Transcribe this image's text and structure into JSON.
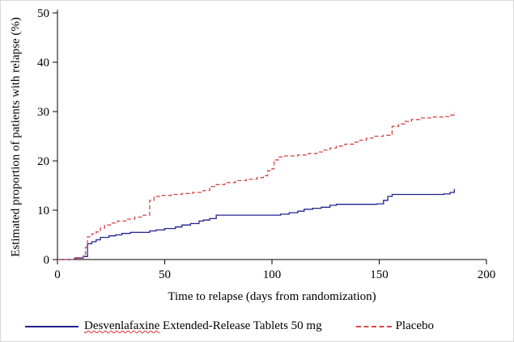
{
  "chart_data": {
    "type": "line",
    "subtype": "step",
    "title": "",
    "xlabel": "Time to relapse (days from randomization)",
    "ylabel": "Estimated proportion of patients with relapse (%)",
    "xlim": [
      0,
      200
    ],
    "ylim": [
      0,
      50
    ],
    "xticks": [
      0,
      50,
      100,
      150,
      200
    ],
    "yticks": [
      0,
      10,
      20,
      30,
      40,
      50
    ],
    "grid": false,
    "legend_position": "bottom",
    "series": [
      {
        "name": "Desvenlafaxine Extended-Release Tablets 50 mg",
        "color": "#22228c",
        "style": "solid",
        "squiggle_first_word": true,
        "points": [
          [
            0,
            0
          ],
          [
            8,
            0.3
          ],
          [
            12,
            0.6
          ],
          [
            14,
            3.2
          ],
          [
            16,
            3.6
          ],
          [
            18,
            4.0
          ],
          [
            20,
            4.5
          ],
          [
            24,
            4.8
          ],
          [
            27,
            5.0
          ],
          [
            30,
            5.3
          ],
          [
            34,
            5.5
          ],
          [
            43,
            5.8
          ],
          [
            46,
            6.0
          ],
          [
            50,
            6.3
          ],
          [
            55,
            6.6
          ],
          [
            58,
            7.0
          ],
          [
            62,
            7.3
          ],
          [
            66,
            7.8
          ],
          [
            68,
            8.0
          ],
          [
            71,
            8.3
          ],
          [
            74,
            9.0
          ],
          [
            100,
            9.0
          ],
          [
            104,
            9.2
          ],
          [
            108,
            9.5
          ],
          [
            112,
            9.8
          ],
          [
            115,
            10.2
          ],
          [
            119,
            10.4
          ],
          [
            123,
            10.6
          ],
          [
            127,
            11.0
          ],
          [
            130,
            11.2
          ],
          [
            149,
            11.3
          ],
          [
            152,
            12.0
          ],
          [
            154,
            12.8
          ],
          [
            156,
            13.2
          ],
          [
            180,
            13.3
          ],
          [
            183,
            13.6
          ],
          [
            185,
            14.3
          ]
        ]
      },
      {
        "name": "Placebo",
        "color": "#d04a4a",
        "style": "dashed",
        "squiggle_first_word": false,
        "points": [
          [
            0,
            0
          ],
          [
            9,
            0.4
          ],
          [
            12,
            1.0
          ],
          [
            13,
            2.5
          ],
          [
            14,
            4.6
          ],
          [
            16,
            5.2
          ],
          [
            18,
            5.6
          ],
          [
            20,
            6.4
          ],
          [
            22,
            7.0
          ],
          [
            25,
            7.4
          ],
          [
            28,
            7.8
          ],
          [
            32,
            8.2
          ],
          [
            36,
            8.6
          ],
          [
            40,
            9.0
          ],
          [
            43,
            12.0
          ],
          [
            45,
            12.8
          ],
          [
            48,
            13.0
          ],
          [
            53,
            13.2
          ],
          [
            58,
            13.4
          ],
          [
            63,
            13.6
          ],
          [
            68,
            14.0
          ],
          [
            71,
            14.8
          ],
          [
            74,
            15.2
          ],
          [
            78,
            15.6
          ],
          [
            83,
            16.0
          ],
          [
            88,
            16.3
          ],
          [
            93,
            16.6
          ],
          [
            96,
            17.0
          ],
          [
            98,
            18.0
          ],
          [
            100,
            18.4
          ],
          [
            101,
            20.2
          ],
          [
            103,
            20.8
          ],
          [
            106,
            21.0
          ],
          [
            112,
            21.2
          ],
          [
            117,
            21.5
          ],
          [
            121,
            21.8
          ],
          [
            124,
            22.2
          ],
          [
            127,
            22.6
          ],
          [
            130,
            23.0
          ],
          [
            134,
            23.4
          ],
          [
            138,
            23.8
          ],
          [
            141,
            24.2
          ],
          [
            144,
            24.6
          ],
          [
            147,
            25.0
          ],
          [
            152,
            25.2
          ],
          [
            155,
            25.4
          ],
          [
            156,
            27.0
          ],
          [
            159,
            27.5
          ],
          [
            162,
            28.0
          ],
          [
            165,
            28.4
          ],
          [
            169,
            28.7
          ],
          [
            174,
            28.9
          ],
          [
            180,
            29.0
          ],
          [
            183,
            29.3
          ],
          [
            185,
            29.9
          ]
        ]
      }
    ]
  }
}
